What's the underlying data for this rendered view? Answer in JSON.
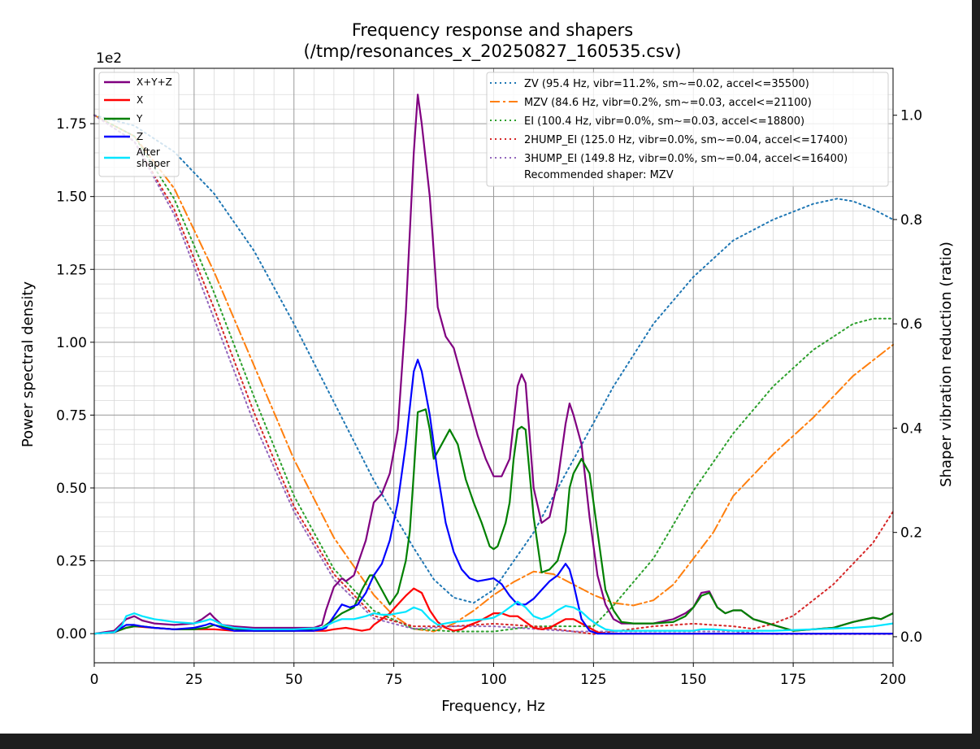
{
  "chart_data": {
    "type": "line",
    "title": "Frequency response and shapers",
    "subtitle": "(/tmp/resonances_x_20250827_160535.csv)",
    "xlabel": "Frequency, Hz",
    "ylabel": "Power spectral density",
    "ylabel_right": "Shaper vibration reduction (ratio)",
    "y_offset_label": "1e2",
    "xlim": [
      0,
      200
    ],
    "ylim": [
      -0.1,
      1.94
    ],
    "ylim_right": [
      -0.05,
      1.09
    ],
    "x_ticks": [
      0,
      25,
      50,
      75,
      100,
      125,
      150,
      175,
      200
    ],
    "x_tick_labels": [
      "0",
      "25",
      "50",
      "75",
      "100",
      "125",
      "150",
      "175",
      "200"
    ],
    "y_ticks": [
      0,
      0.25,
      0.5,
      0.75,
      1.0,
      1.25,
      1.5,
      1.75
    ],
    "y_tick_labels": [
      "0.00",
      "0.25",
      "0.50",
      "0.75",
      "1.00",
      "1.25",
      "1.50",
      "1.75"
    ],
    "y_right_ticks": [
      0,
      0.2,
      0.4,
      0.6,
      0.8,
      1.0
    ],
    "y_right_tick_labels": [
      "0.0",
      "0.2",
      "0.4",
      "0.6",
      "0.8",
      "1.0"
    ],
    "grid": true,
    "legend_left_position": "upper-left",
    "legend_right_position": "upper-right",
    "recommended_text": "Recommended shaper: MZV",
    "psd_series": [
      {
        "name": "X+Y+Z",
        "legend": "X+Y+Z",
        "color": "#800080",
        "x": [
          0,
          5,
          8,
          10,
          12,
          15,
          20,
          25,
          27,
          29,
          30,
          32,
          35,
          40,
          45,
          50,
          55,
          57,
          58,
          60,
          62,
          63,
          65,
          67,
          68,
          70,
          72,
          74,
          76,
          78,
          80,
          81,
          82,
          84,
          86,
          88,
          90,
          92,
          94,
          96,
          98,
          100,
          102,
          104,
          106,
          107,
          108,
          110,
          112,
          114,
          116,
          118,
          119,
          120,
          122,
          124,
          126,
          128,
          130,
          132,
          135,
          140,
          145,
          148,
          150,
          152,
          154,
          156,
          158,
          160,
          162,
          165,
          170,
          175,
          180,
          185,
          190,
          195,
          197,
          200
        ],
        "y": [
          0.0,
          0.01,
          0.05,
          0.06,
          0.045,
          0.035,
          0.03,
          0.035,
          0.05,
          0.07,
          0.055,
          0.03,
          0.025,
          0.02,
          0.02,
          0.02,
          0.02,
          0.03,
          0.08,
          0.16,
          0.19,
          0.18,
          0.2,
          0.28,
          0.32,
          0.45,
          0.48,
          0.55,
          0.7,
          1.1,
          1.65,
          1.85,
          1.75,
          1.5,
          1.12,
          1.02,
          0.98,
          0.88,
          0.78,
          0.68,
          0.6,
          0.54,
          0.54,
          0.6,
          0.85,
          0.89,
          0.86,
          0.5,
          0.38,
          0.4,
          0.52,
          0.72,
          0.79,
          0.75,
          0.65,
          0.4,
          0.2,
          0.1,
          0.05,
          0.035,
          0.035,
          0.035,
          0.05,
          0.07,
          0.09,
          0.14,
          0.145,
          0.09,
          0.07,
          0.08,
          0.08,
          0.05,
          0.03,
          0.01,
          0.015,
          0.02,
          0.04,
          0.055,
          0.05,
          0.07
        ]
      },
      {
        "name": "X",
        "legend": "X",
        "color": "#ff0000",
        "x": [
          0,
          5,
          8,
          10,
          15,
          20,
          25,
          30,
          35,
          40,
          50,
          55,
          58,
          60,
          63,
          65,
          67,
          69,
          70,
          72,
          74,
          76,
          78,
          80,
          82,
          84,
          86,
          88,
          90,
          92,
          94,
          96,
          98,
          100,
          102,
          104,
          106,
          108,
          110,
          112,
          114,
          116,
          118,
          120,
          122,
          124,
          126,
          128,
          130,
          140,
          150,
          160,
          170,
          180,
          190,
          200
        ],
        "y": [
          0.0,
          0.005,
          0.02,
          0.025,
          0.02,
          0.015,
          0.015,
          0.015,
          0.01,
          0.01,
          0.01,
          0.01,
          0.01,
          0.015,
          0.02,
          0.015,
          0.01,
          0.015,
          0.03,
          0.05,
          0.07,
          0.1,
          0.13,
          0.155,
          0.14,
          0.08,
          0.04,
          0.02,
          0.01,
          0.015,
          0.03,
          0.04,
          0.055,
          0.07,
          0.07,
          0.06,
          0.06,
          0.04,
          0.02,
          0.015,
          0.02,
          0.035,
          0.05,
          0.05,
          0.035,
          0.02,
          0.005,
          0.0,
          0.0,
          0.0,
          0.0,
          0.0,
          0.0,
          0.0,
          0.0,
          0.0
        ]
      },
      {
        "name": "Y",
        "legend": "Y",
        "color": "#008000",
        "x": [
          0,
          5,
          8,
          10,
          12,
          15,
          20,
          25,
          28,
          30,
          33,
          40,
          50,
          57,
          60,
          62,
          65,
          67,
          69,
          70,
          72,
          74,
          76,
          78,
          79,
          80,
          81,
          83,
          84,
          85,
          87,
          89,
          91,
          93,
          95,
          97,
          99,
          100,
          101,
          103,
          104,
          105,
          106,
          107,
          108,
          110,
          112,
          114,
          116,
          118,
          119,
          120,
          122,
          124,
          126,
          128,
          130,
          132,
          135,
          140,
          145,
          148,
          150,
          152,
          154,
          156,
          158,
          160,
          162,
          165,
          170,
          175,
          180,
          185,
          190,
          195,
          197,
          200
        ],
        "y": [
          0.0,
          0.005,
          0.02,
          0.025,
          0.025,
          0.02,
          0.015,
          0.015,
          0.02,
          0.03,
          0.02,
          0.01,
          0.01,
          0.02,
          0.05,
          0.07,
          0.09,
          0.15,
          0.2,
          0.2,
          0.15,
          0.1,
          0.14,
          0.25,
          0.35,
          0.55,
          0.76,
          0.77,
          0.7,
          0.6,
          0.65,
          0.7,
          0.65,
          0.53,
          0.45,
          0.38,
          0.3,
          0.29,
          0.3,
          0.38,
          0.45,
          0.6,
          0.7,
          0.71,
          0.7,
          0.4,
          0.21,
          0.22,
          0.25,
          0.35,
          0.5,
          0.55,
          0.6,
          0.55,
          0.35,
          0.15,
          0.08,
          0.04,
          0.035,
          0.035,
          0.04,
          0.06,
          0.09,
          0.13,
          0.14,
          0.09,
          0.07,
          0.08,
          0.08,
          0.05,
          0.03,
          0.01,
          0.015,
          0.02,
          0.04,
          0.055,
          0.05,
          0.07
        ]
      },
      {
        "name": "Z",
        "legend": "Z",
        "color": "#0000ff",
        "x": [
          0,
          5,
          8,
          10,
          12,
          15,
          20,
          25,
          28,
          29,
          30,
          32,
          35,
          40,
          50,
          55,
          57,
          58,
          60,
          62,
          64,
          65,
          66,
          68,
          70,
          72,
          74,
          76,
          78,
          80,
          81,
          82,
          84,
          86,
          88,
          90,
          92,
          94,
          96,
          98,
          100,
          102,
          104,
          106,
          108,
          110,
          112,
          114,
          116,
          118,
          119,
          120,
          122,
          124,
          126,
          128,
          130,
          140,
          150,
          160,
          170,
          180,
          190,
          200
        ],
        "y": [
          0.0,
          0.005,
          0.03,
          0.03,
          0.025,
          0.02,
          0.015,
          0.02,
          0.03,
          0.035,
          0.03,
          0.02,
          0.01,
          0.01,
          0.01,
          0.01,
          0.015,
          0.02,
          0.06,
          0.1,
          0.09,
          0.095,
          0.1,
          0.14,
          0.2,
          0.24,
          0.32,
          0.45,
          0.65,
          0.9,
          0.94,
          0.9,
          0.75,
          0.55,
          0.38,
          0.28,
          0.22,
          0.19,
          0.18,
          0.185,
          0.19,
          0.17,
          0.13,
          0.1,
          0.1,
          0.12,
          0.15,
          0.18,
          0.2,
          0.24,
          0.22,
          0.17,
          0.05,
          0.01,
          0.0,
          0.0,
          0.0,
          0.0,
          0.0,
          0.0,
          0.0,
          0.0,
          0.0,
          0.0
        ]
      },
      {
        "name": "After shaper",
        "legend": "After\nshaper",
        "color": "#00e5ff",
        "x": [
          0,
          5,
          7,
          8,
          10,
          12,
          15,
          20,
          25,
          28,
          29,
          30,
          32,
          35,
          40,
          50,
          57,
          60,
          62,
          65,
          68,
          70,
          72,
          74,
          76,
          78,
          80,
          82,
          84,
          86,
          88,
          90,
          94,
          98,
          100,
          102,
          104,
          106,
          108,
          110,
          112,
          114,
          116,
          118,
          120,
          122,
          124,
          126,
          128,
          130,
          140,
          150,
          152,
          155,
          160,
          170,
          180,
          190,
          195,
          200
        ],
        "y": [
          0.0,
          0.005,
          0.03,
          0.06,
          0.07,
          0.06,
          0.05,
          0.04,
          0.035,
          0.045,
          0.05,
          0.045,
          0.03,
          0.02,
          0.015,
          0.015,
          0.02,
          0.04,
          0.05,
          0.05,
          0.06,
          0.07,
          0.065,
          0.065,
          0.07,
          0.075,
          0.09,
          0.08,
          0.05,
          0.03,
          0.035,
          0.04,
          0.045,
          0.05,
          0.055,
          0.07,
          0.09,
          0.11,
          0.09,
          0.06,
          0.05,
          0.06,
          0.08,
          0.095,
          0.09,
          0.075,
          0.05,
          0.03,
          0.015,
          0.01,
          0.01,
          0.01,
          0.015,
          0.015,
          0.01,
          0.01,
          0.015,
          0.02,
          0.025,
          0.035
        ]
      }
    ],
    "shaper_series": [
      {
        "name": "ZV",
        "legend": "ZV (95.4 Hz, vibr=11.2%, sm~=0.02, accel<=35500)",
        "color": "#1f77b4",
        "dash": "dotted",
        "x": [
          0,
          10,
          20,
          30,
          40,
          50,
          60,
          70,
          80,
          85,
          90,
          95,
          100,
          110,
          120,
          130,
          140,
          150,
          160,
          170,
          180,
          186,
          190,
          195,
          200
        ],
        "y": [
          1.0,
          0.98,
          0.93,
          0.85,
          0.74,
          0.6,
          0.45,
          0.3,
          0.17,
          0.11,
          0.075,
          0.065,
          0.09,
          0.2,
          0.34,
          0.48,
          0.6,
          0.69,
          0.76,
          0.8,
          0.83,
          0.84,
          0.835,
          0.82,
          0.8
        ]
      },
      {
        "name": "MZV",
        "legend": "MZV (84.6 Hz, vibr=0.2%, sm~=0.03, accel<=21100)",
        "color": "#ff7f0e",
        "dash": "dashdot",
        "x": [
          0,
          10,
          20,
          30,
          40,
          50,
          60,
          70,
          75,
          80,
          85,
          90,
          95,
          100,
          105,
          110,
          115,
          120,
          125,
          130,
          135,
          140,
          145,
          150,
          155,
          160,
          170,
          180,
          190,
          200
        ],
        "y": [
          1.0,
          0.96,
          0.86,
          0.7,
          0.52,
          0.34,
          0.19,
          0.08,
          0.04,
          0.015,
          0.01,
          0.025,
          0.05,
          0.08,
          0.105,
          0.125,
          0.12,
          0.1,
          0.08,
          0.065,
          0.06,
          0.07,
          0.1,
          0.15,
          0.2,
          0.27,
          0.35,
          0.42,
          0.5,
          0.56
        ]
      },
      {
        "name": "EI",
        "legend": "EI (100.4 Hz, vibr=0.0%, sm~=0.03, accel<=18800)",
        "color": "#2ca02c",
        "dash": "dotted",
        "x": [
          0,
          10,
          20,
          30,
          40,
          50,
          60,
          70,
          80,
          90,
          100,
          110,
          115,
          120,
          125,
          130,
          140,
          150,
          160,
          170,
          180,
          190,
          195,
          200
        ],
        "y": [
          1.0,
          0.96,
          0.84,
          0.66,
          0.46,
          0.27,
          0.13,
          0.05,
          0.015,
          0.01,
          0.01,
          0.02,
          0.02,
          0.02,
          0.02,
          0.06,
          0.15,
          0.28,
          0.39,
          0.48,
          0.55,
          0.6,
          0.61,
          0.61
        ]
      },
      {
        "name": "2HUMP_EI",
        "legend": "2HUMP_EI (125.0 Hz, vibr=0.0%, sm~=0.04, accel<=17400)",
        "color": "#d62728",
        "dash": "dotted",
        "x": [
          0,
          10,
          20,
          30,
          40,
          50,
          60,
          70,
          80,
          90,
          100,
          110,
          120,
          125,
          130,
          140,
          150,
          160,
          165,
          170,
          175,
          180,
          185,
          190,
          195,
          200
        ],
        "y": [
          1.0,
          0.95,
          0.82,
          0.63,
          0.43,
          0.25,
          0.12,
          0.04,
          0.02,
          0.02,
          0.025,
          0.02,
          0.01,
          0.005,
          0.01,
          0.02,
          0.025,
          0.02,
          0.015,
          0.025,
          0.04,
          0.07,
          0.1,
          0.14,
          0.18,
          0.24
        ]
      },
      {
        "name": "3HUMP_EI",
        "legend": "3HUMP_EI (149.8 Hz, vibr=0.0%, sm~=0.04, accel<=16400)",
        "color": "#9467bd",
        "dash": "dotted",
        "x": [
          0,
          10,
          20,
          30,
          40,
          50,
          60,
          70,
          80,
          90,
          100,
          110,
          120,
          130,
          140,
          150,
          160,
          170,
          180,
          190,
          200
        ],
        "y": [
          1.0,
          0.95,
          0.81,
          0.61,
          0.41,
          0.24,
          0.11,
          0.035,
          0.015,
          0.02,
          0.02,
          0.015,
          0.01,
          0.01,
          0.01,
          0.01,
          0.01,
          0.005,
          0.005,
          0.005,
          0.005
        ]
      }
    ]
  }
}
